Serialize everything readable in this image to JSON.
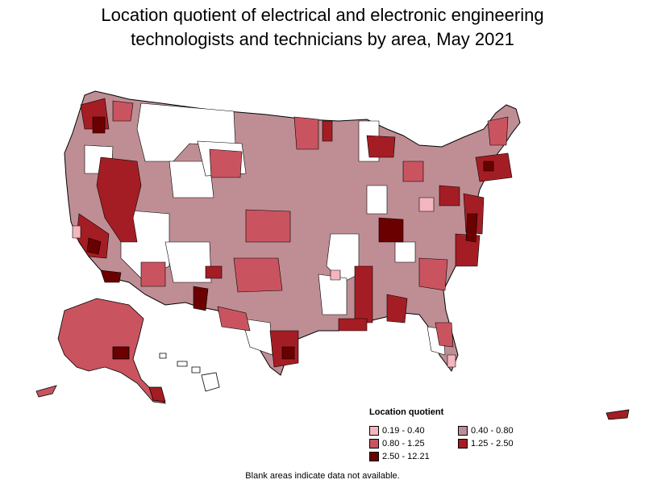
{
  "title_line1": "Location quotient of electrical and electronic engineering",
  "title_line2": "technologists and technicians by area, May 2021",
  "legend": {
    "title": "Location quotient",
    "items": [
      {
        "label": "0.19 - 0.40",
        "color": "#f4b6be"
      },
      {
        "label": "0.40 - 0.80",
        "color": "#bf8e94"
      },
      {
        "label": "0.80 - 1.25",
        "color": "#c9545f"
      },
      {
        "label": "1.25 - 2.50",
        "color": "#a51d24"
      },
      {
        "label": "2.50 - 12.21",
        "color": "#6b0000"
      }
    ]
  },
  "footnote": "Blank areas indicate data not available."
}
